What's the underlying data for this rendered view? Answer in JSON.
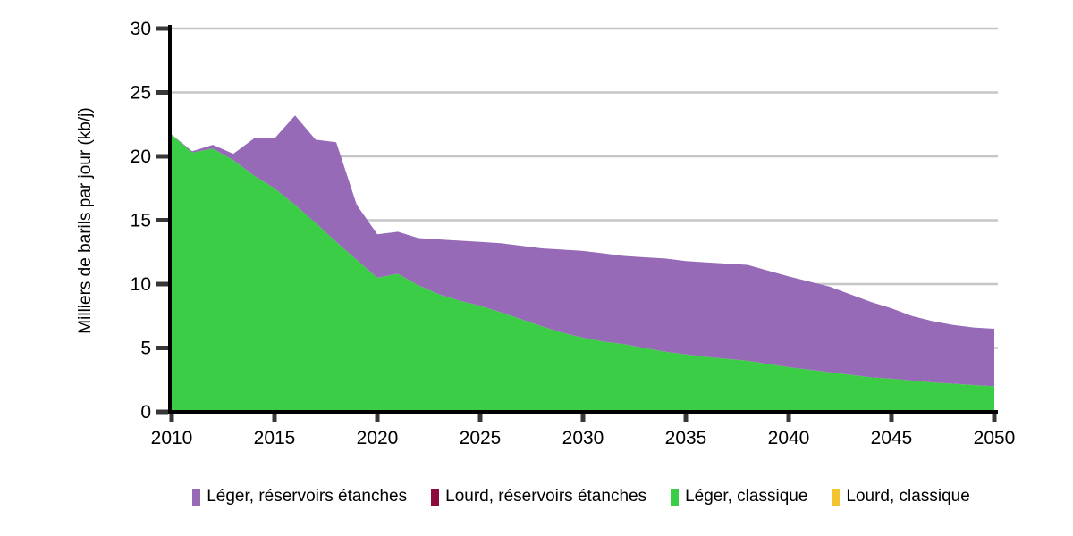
{
  "chart_data": {
    "type": "area",
    "stacked": true,
    "title": "",
    "xlabel": "",
    "ylabel": "Milliers de barils par jour (kb/j)",
    "xlim": [
      2010,
      2050
    ],
    "ylim": [
      0,
      30
    ],
    "x_ticks": [
      2010,
      2015,
      2020,
      2025,
      2030,
      2035,
      2040,
      2045,
      2050
    ],
    "y_ticks": [
      0,
      5,
      10,
      15,
      20,
      25,
      30
    ],
    "grid": "horizontal",
    "legend_position": "bottom",
    "axis_color": "#000000",
    "tick_color": "#383838",
    "gridline_color": "#c6c6c6",
    "x": [
      2010,
      2011,
      2012,
      2013,
      2014,
      2015,
      2016,
      2017,
      2018,
      2019,
      2020,
      2021,
      2022,
      2023,
      2024,
      2025,
      2026,
      2027,
      2028,
      2029,
      2030,
      2031,
      2032,
      2033,
      2034,
      2035,
      2036,
      2037,
      2038,
      2039,
      2040,
      2041,
      2042,
      2043,
      2044,
      2045,
      2046,
      2047,
      2048,
      2049,
      2050
    ],
    "series": [
      {
        "name": "Léger, réservoirs étanches",
        "color": "#976AB8",
        "values": [
          0,
          0.1,
          0.3,
          0.5,
          2.9,
          3.9,
          7.0,
          6.5,
          7.8,
          4.3,
          3.4,
          3.3,
          3.7,
          4.3,
          4.7,
          5.0,
          5.4,
          5.75,
          6.1,
          6.5,
          6.8,
          6.9,
          6.9,
          7.1,
          7.3,
          7.3,
          7.4,
          7.45,
          7.5,
          7.3,
          7.1,
          6.9,
          6.7,
          6.3,
          5.9,
          5.5,
          5.05,
          4.8,
          4.6,
          4.5,
          4.5
        ]
      },
      {
        "name": "Lourd, réservoirs étanches",
        "color": "#8C0A3C",
        "values": [
          0,
          0,
          0,
          0,
          0,
          0,
          0,
          0,
          0,
          0,
          0,
          0,
          0,
          0,
          0,
          0,
          0,
          0,
          0,
          0,
          0,
          0,
          0,
          0,
          0,
          0,
          0,
          0,
          0,
          0,
          0,
          0,
          0,
          0,
          0,
          0,
          0,
          0,
          0,
          0,
          0
        ]
      },
      {
        "name": "Léger, classique",
        "color": "#3CCD46",
        "values": [
          21.7,
          20.3,
          20.6,
          19.7,
          18.5,
          17.5,
          16.2,
          14.8,
          13.3,
          11.9,
          10.5,
          10.8,
          9.9,
          9.2,
          8.7,
          8.3,
          7.8,
          7.25,
          6.7,
          6.2,
          5.8,
          5.5,
          5.3,
          5.0,
          4.7,
          4.5,
          4.3,
          4.15,
          4.0,
          3.75,
          3.5,
          3.3,
          3.1,
          2.9,
          2.7,
          2.6,
          2.45,
          2.3,
          2.2,
          2.1,
          2.0
        ]
      },
      {
        "name": "Lourd, classique",
        "color": "#F4C430",
        "values": [
          0,
          0,
          0,
          0,
          0,
          0,
          0,
          0,
          0,
          0,
          0,
          0,
          0,
          0,
          0,
          0,
          0,
          0,
          0,
          0,
          0,
          0,
          0,
          0,
          0,
          0,
          0,
          0,
          0,
          0,
          0,
          0,
          0,
          0,
          0,
          0,
          0,
          0,
          0,
          0,
          0
        ]
      }
    ],
    "stack_bottom_to_top": [
      3,
      2,
      1,
      0
    ]
  }
}
